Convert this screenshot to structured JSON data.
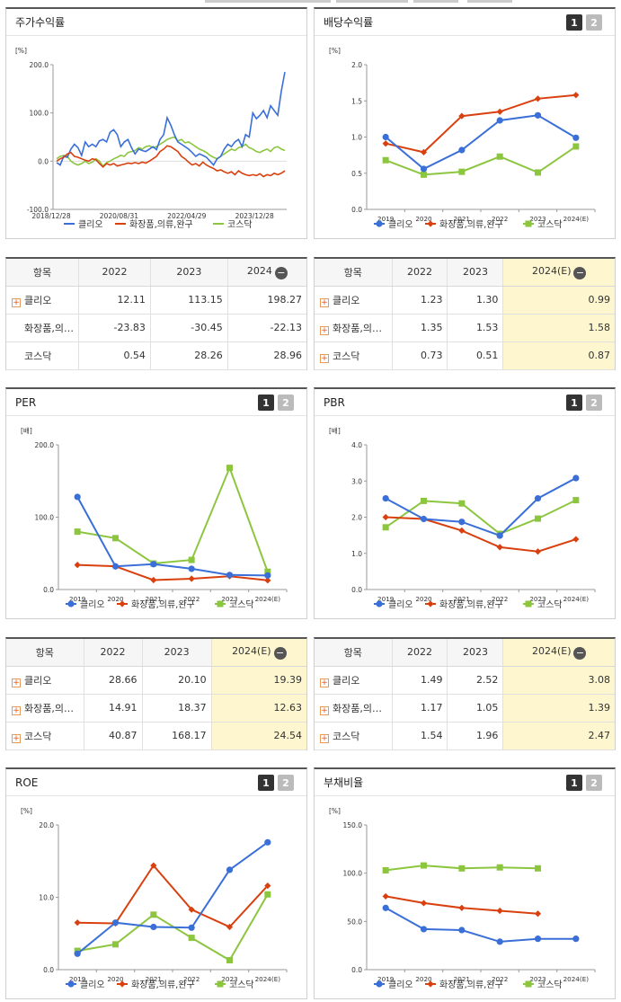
{
  "colors": {
    "clio": "#3a6fd8",
    "cosmetics": "#d9400f",
    "kosdaq": "#8cc63f"
  },
  "legend": [
    "클리오",
    "화장품,의류,완구",
    "코스닥"
  ],
  "pager": [
    "1",
    "2"
  ],
  "panels": {
    "stock": {
      "title": "주가수익률"
    },
    "dividend": {
      "title": "배당수익률"
    },
    "per": {
      "title": "PER"
    },
    "pbr": {
      "title": "PBR"
    },
    "roe": {
      "title": "ROE"
    },
    "debt": {
      "title": "부채비율"
    }
  },
  "tables": {
    "stock": {
      "headers": [
        "항목",
        "2022",
        "2023",
        "2024"
      ],
      "rows": [
        {
          "name": "클리오",
          "v": [
            "12.11",
            "113.15",
            "198.27"
          ]
        },
        {
          "name": "화장품,의…",
          "v": [
            "-23.83",
            "-30.45",
            "-22.13"
          ]
        },
        {
          "name": "코스닥",
          "v": [
            "0.54",
            "28.26",
            "28.96"
          ]
        }
      ]
    },
    "dividend": {
      "headers": [
        "항목",
        "2022",
        "2023",
        "2024(E)"
      ],
      "rows": [
        {
          "name": "클리오",
          "v": [
            "1.23",
            "1.30",
            "0.99"
          ]
        },
        {
          "name": "화장품,의…",
          "v": [
            "1.35",
            "1.53",
            "1.58"
          ]
        },
        {
          "name": "코스닥",
          "v": [
            "0.73",
            "0.51",
            "0.87"
          ]
        }
      ]
    },
    "per": {
      "headers": [
        "항목",
        "2022",
        "2023",
        "2024(E)"
      ],
      "rows": [
        {
          "name": "클리오",
          "v": [
            "28.66",
            "20.10",
            "19.39"
          ]
        },
        {
          "name": "화장품,의…",
          "v": [
            "14.91",
            "18.37",
            "12.63"
          ]
        },
        {
          "name": "코스닥",
          "v": [
            "40.87",
            "168.17",
            "24.54"
          ]
        }
      ]
    },
    "pbr": {
      "headers": [
        "항목",
        "2022",
        "2023",
        "2024(E)"
      ],
      "rows": [
        {
          "name": "클리오",
          "v": [
            "1.49",
            "2.52",
            "3.08"
          ]
        },
        {
          "name": "화장품,의…",
          "v": [
            "1.17",
            "1.05",
            "1.39"
          ]
        },
        {
          "name": "코스닥",
          "v": [
            "1.54",
            "1.96",
            "2.47"
          ]
        }
      ]
    }
  },
  "chart_data": [
    {
      "id": "stock",
      "type": "line",
      "title": "주가수익률",
      "ylabel": "[%]",
      "ylim": [
        -100,
        200
      ],
      "yticks": [
        "-100.0",
        "0.0",
        "100.0",
        "200.0"
      ],
      "xticklabels": [
        "2018/12/28",
        "2020/08/31",
        "2022/04/29",
        "2023/12/28"
      ],
      "x_range": [
        "2018/12/28",
        "2024/07"
      ],
      "series": [
        {
          "name": "클리오",
          "values": [
            -3,
            -8,
            10,
            8,
            25,
            35,
            28,
            12,
            40,
            30,
            35,
            30,
            42,
            45,
            40,
            60,
            65,
            55,
            30,
            40,
            45,
            28,
            15,
            25,
            22,
            20,
            25,
            30,
            24,
            45,
            55,
            90,
            75,
            55,
            40,
            35,
            30,
            25,
            18,
            10,
            15,
            12,
            8,
            0,
            -8,
            5,
            10,
            25,
            35,
            30,
            40,
            45,
            30,
            55,
            50,
            100,
            88,
            95,
            105,
            90,
            115,
            105,
            95,
            145,
            185
          ]
        },
        {
          "name": "화장품,의류,완구",
          "values": [
            0,
            5,
            8,
            15,
            18,
            10,
            8,
            5,
            2,
            0,
            5,
            3,
            -5,
            -12,
            -5,
            -8,
            -5,
            -10,
            -8,
            -6,
            -4,
            -5,
            -3,
            -5,
            -2,
            -4,
            0,
            5,
            10,
            20,
            25,
            32,
            30,
            25,
            20,
            10,
            5,
            -2,
            -8,
            -5,
            -10,
            -2,
            -8,
            -12,
            -15,
            -20,
            -18,
            -22,
            -25,
            -22,
            -28,
            -20,
            -25,
            -28,
            -30,
            -28,
            -30,
            -26,
            -32,
            -28,
            -30,
            -25,
            -28,
            -25,
            -20
          ]
        },
        {
          "name": "코스닥",
          "values": [
            5,
            10,
            12,
            10,
            0,
            -5,
            -8,
            -5,
            0,
            -5,
            -2,
            5,
            0,
            -10,
            -3,
            0,
            5,
            8,
            12,
            10,
            18,
            20,
            22,
            28,
            25,
            30,
            32,
            28,
            30,
            35,
            40,
            45,
            48,
            50,
            42,
            45,
            38,
            40,
            35,
            30,
            25,
            22,
            18,
            12,
            8,
            5,
            10,
            15,
            20,
            25,
            22,
            28,
            30,
            35,
            28,
            25,
            20,
            18,
            22,
            25,
            20,
            28,
            30,
            25,
            22
          ]
        }
      ]
    },
    {
      "id": "dividend",
      "type": "line",
      "title": "배당수익률",
      "ylabel": "[%]",
      "ylim": [
        0,
        2
      ],
      "yticks": [
        "0.0",
        "0.5",
        "1.0",
        "1.5",
        "2.0"
      ],
      "categories": [
        "2019",
        "2020",
        "2021",
        "2022",
        "2023",
        "2024(E)"
      ],
      "series": [
        {
          "name": "클리오",
          "values": [
            1.0,
            0.56,
            0.82,
            1.23,
            1.3,
            0.99
          ]
        },
        {
          "name": "화장품,의류,완구",
          "values": [
            0.91,
            0.79,
            1.29,
            1.35,
            1.53,
            1.58
          ]
        },
        {
          "name": "코스닥",
          "values": [
            0.68,
            0.48,
            0.52,
            0.73,
            0.51,
            0.87
          ]
        }
      ]
    },
    {
      "id": "per",
      "type": "line",
      "title": "PER",
      "ylabel": "[배]",
      "ylim": [
        0,
        200
      ],
      "yticks": [
        "0.0",
        "100.0",
        "200.0"
      ],
      "categories": [
        "2019",
        "2020",
        "2021",
        "2022",
        "2023",
        "2024(E)"
      ],
      "series": [
        {
          "name": "클리오",
          "values": [
            128,
            32,
            35,
            28.66,
            20.1,
            19.39
          ]
        },
        {
          "name": "화장품,의류,완구",
          "values": [
            34,
            32,
            13,
            14.91,
            18.37,
            12.63
          ]
        },
        {
          "name": "코스닥",
          "values": [
            80,
            71,
            36,
            40.87,
            168.17,
            24.54
          ]
        }
      ]
    },
    {
      "id": "pbr",
      "type": "line",
      "title": "PBR",
      "ylabel": "[배]",
      "ylim": [
        0,
        4
      ],
      "yticks": [
        "0.0",
        "1.0",
        "2.0",
        "3.0",
        "4.0"
      ],
      "categories": [
        "2019",
        "2020",
        "2021",
        "2022",
        "2023",
        "2024(E)"
      ],
      "series": [
        {
          "name": "클리오",
          "values": [
            2.52,
            1.95,
            1.87,
            1.49,
            2.52,
            3.08
          ]
        },
        {
          "name": "화장품,의류,완구",
          "values": [
            2.0,
            1.95,
            1.63,
            1.17,
            1.05,
            1.39
          ]
        },
        {
          "name": "코스닥",
          "values": [
            1.72,
            2.45,
            2.38,
            1.54,
            1.96,
            2.47
          ]
        }
      ]
    },
    {
      "id": "roe",
      "type": "line",
      "title": "ROE",
      "ylabel": "[%]",
      "ylim": [
        0,
        20
      ],
      "yticks": [
        "0.0",
        "10.0",
        "20.0"
      ],
      "categories": [
        "2019",
        "2020",
        "2021",
        "2022",
        "2023",
        "2024(E)"
      ],
      "series": [
        {
          "name": "클리오",
          "values": [
            2.2,
            6.5,
            5.9,
            5.8,
            13.8,
            17.6
          ]
        },
        {
          "name": "화장품,의류,완구",
          "values": [
            6.5,
            6.4,
            14.4,
            8.3,
            5.9,
            11.6
          ]
        },
        {
          "name": "코스닥",
          "values": [
            2.6,
            3.5,
            7.6,
            4.4,
            1.3,
            10.4
          ]
        }
      ]
    },
    {
      "id": "debt",
      "type": "line",
      "title": "부채비율",
      "ylabel": "[%]",
      "ylim": [
        0,
        150
      ],
      "yticks": [
        "0.0",
        "50.0",
        "100.0",
        "150.0"
      ],
      "categories": [
        "2019",
        "2020",
        "2021",
        "2022",
        "2023",
        "2024(E)"
      ],
      "series": [
        {
          "name": "클리오",
          "values": [
            64,
            42,
            41,
            29,
            32,
            32
          ]
        },
        {
          "name": "화장품,의류,완구",
          "values": [
            76,
            69,
            64,
            61,
            58,
            null
          ]
        },
        {
          "name": "코스닥",
          "values": [
            103,
            108,
            105,
            106,
            105,
            null
          ]
        }
      ]
    }
  ]
}
